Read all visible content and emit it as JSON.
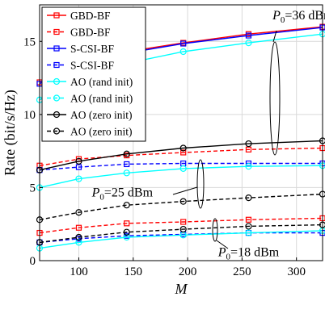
{
  "chart_data": {
    "type": "line",
    "xlabel": "M",
    "ylabel": "Rate (bit/s/Hz)",
    "xlim": [
      64,
      324
    ],
    "ylim": [
      0,
      17.5
    ],
    "xticks": [
      100,
      150,
      200,
      250,
      300
    ],
    "yticks": [
      0,
      5,
      10,
      15
    ],
    "grid": true,
    "legend_position": "top-left",
    "x": [
      64,
      100,
      144,
      196,
      256,
      324
    ],
    "legend": [
      {
        "label": "GBD-BF",
        "color": "#ff0000",
        "marker": "square",
        "dash": "solid"
      },
      {
        "label": "S-CSI-BF",
        "color": "#0000ff",
        "marker": "square",
        "dash": "dashed"
      },
      {
        "label": "AO (rand init)",
        "color": "#00ffff",
        "marker": "circle",
        "dash": "solid"
      },
      {
        "label": "AO (zero init)",
        "color": "#000000",
        "marker": "circle",
        "dash": "dashed"
      }
    ],
    "series": [
      {
        "group": "P0=36 dBm",
        "name": "GBD-BF",
        "values": [
          12.2,
          13.5,
          14.3,
          14.9,
          15.5,
          16.0
        ],
        "color": "#ff0000",
        "marker": "square",
        "dash": "solid"
      },
      {
        "group": "P0=36 dBm",
        "name": "S-CSI-BF",
        "values": [
          12.1,
          13.5,
          14.2,
          14.85,
          15.4,
          15.95
        ],
        "color": "#0000ff",
        "marker": "square",
        "dash": "solid"
      },
      {
        "group": "P0=36 dBm",
        "name": "AO (rand init)",
        "values": [
          11.0,
          12.3,
          13.5,
          14.3,
          14.9,
          15.5
        ],
        "color": "#00ffff",
        "marker": "circle",
        "dash": "solid"
      },
      {
        "group": "P0=25 dBm",
        "name": "GBD-BF",
        "values": [
          6.5,
          6.95,
          7.2,
          7.4,
          7.6,
          7.7
        ],
        "color": "#ff0000",
        "marker": "square",
        "dash": "dashed"
      },
      {
        "group": "P0=25 dBm",
        "name": "S-CSI-BF",
        "values": [
          6.2,
          6.4,
          6.6,
          6.65,
          6.65,
          6.65
        ],
        "color": "#0000ff",
        "marker": "square",
        "dash": "dashed"
      },
      {
        "group": "P0=25 dBm",
        "name": "AO (rand init)",
        "values": [
          5.0,
          5.6,
          6.0,
          6.3,
          6.45,
          6.5
        ],
        "color": "#00ffff",
        "marker": "circle",
        "dash": "solid"
      },
      {
        "group": "P0=25 dBm",
        "name": "AO (zero init)",
        "values": [
          6.2,
          6.8,
          7.3,
          7.7,
          8.0,
          8.2
        ],
        "color": "#000000",
        "marker": "circle",
        "dash": "solid"
      },
      {
        "group": "P0=25 dBm",
        "name": "AO (zero init) lower",
        "values": [
          2.8,
          3.3,
          3.8,
          4.05,
          4.3,
          4.55
        ],
        "color": "#000000",
        "marker": "circle",
        "dash": "dashed"
      },
      {
        "group": "P0=18 dBm",
        "name": "GBD-BF",
        "values": [
          1.9,
          2.25,
          2.55,
          2.65,
          2.8,
          2.9
        ],
        "color": "#ff0000",
        "marker": "square",
        "dash": "dashed"
      },
      {
        "group": "P0=18 dBm",
        "name": "S-CSI-BF",
        "values": [
          1.25,
          1.5,
          1.7,
          1.8,
          1.9,
          1.9
        ],
        "color": "#0000ff",
        "marker": "square",
        "dash": "dashed"
      },
      {
        "group": "P0=18 dBm",
        "name": "AO (rand init)",
        "values": [
          0.85,
          1.25,
          1.6,
          1.75,
          1.9,
          2.05
        ],
        "color": "#00ffff",
        "marker": "circle",
        "dash": "solid"
      },
      {
        "group": "P0=18 dBm",
        "name": "AO (zero init)",
        "values": [
          1.25,
          1.6,
          1.95,
          2.15,
          2.35,
          2.45
        ],
        "color": "#000000",
        "marker": "circle",
        "dash": "dashed"
      }
    ],
    "annotations": [
      {
        "text_p": "P",
        "text_sub": "0",
        "text_rest": "=36 dBm",
        "x": 278,
        "y": 16.5
      },
      {
        "text_p": "P",
        "text_sub": "0",
        "text_rest": "=25 dBm",
        "x": 112,
        "y": 4.4
      },
      {
        "text_p": "P",
        "text_sub": "0",
        "text_rest": "=18 dBm",
        "x": 228,
        "y": 0.3
      }
    ]
  }
}
